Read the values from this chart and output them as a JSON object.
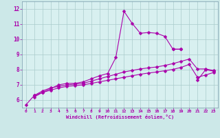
{
  "background_color": "#cce8e8",
  "plot_bg_color": "#d8f0f0",
  "line_color": "#aa00aa",
  "grid_color": "#aacccc",
  "xlabel": "Windchill (Refroidissement éolien,°C)",
  "xlim": [
    -0.5,
    23.5
  ],
  "ylim": [
    5.5,
    12.5
  ],
  "yticks": [
    6,
    7,
    8,
    9,
    10,
    11,
    12
  ],
  "xticks": [
    0,
    1,
    2,
    3,
    4,
    5,
    6,
    7,
    8,
    9,
    10,
    11,
    12,
    13,
    14,
    15,
    16,
    17,
    18,
    19,
    20,
    21,
    22,
    23
  ],
  "line1_x": [
    0,
    1,
    2,
    3,
    4,
    5,
    6,
    7,
    8,
    9,
    10,
    11,
    12,
    13,
    14,
    15,
    16,
    17,
    18,
    19
  ],
  "line1_y": [
    5.7,
    6.3,
    6.5,
    6.75,
    7.0,
    7.1,
    7.1,
    7.2,
    7.4,
    7.6,
    7.75,
    8.8,
    11.85,
    11.05,
    10.4,
    10.45,
    10.4,
    10.2,
    9.35,
    9.35
  ],
  "line2_x": [
    18,
    19,
    20,
    21,
    22,
    23
  ],
  "line2_y": [
    9.35,
    9.35,
    null,
    7.3,
    8.0,
    7.9
  ],
  "line3_x": [
    1,
    2,
    3,
    4,
    5,
    6,
    7,
    8,
    9,
    10,
    11,
    12,
    13,
    14,
    15,
    16,
    17,
    18,
    19,
    20,
    21,
    22,
    23
  ],
  "line3_y": [
    6.3,
    6.6,
    6.8,
    6.9,
    7.0,
    7.05,
    7.1,
    7.25,
    7.4,
    7.55,
    7.7,
    7.85,
    7.95,
    8.05,
    8.12,
    8.18,
    8.28,
    8.4,
    8.55,
    8.7,
    8.05,
    8.05,
    7.95
  ],
  "line4_x": [
    1,
    2,
    3,
    4,
    5,
    6,
    7,
    8,
    9,
    10,
    11,
    12,
    13,
    14,
    15,
    16,
    17,
    18,
    19,
    20,
    21,
    22,
    23
  ],
  "line4_y": [
    6.2,
    6.5,
    6.65,
    6.8,
    6.9,
    6.95,
    7.0,
    7.1,
    7.2,
    7.3,
    7.4,
    7.5,
    7.6,
    7.7,
    7.78,
    7.85,
    7.93,
    8.02,
    8.15,
    8.35,
    7.5,
    7.65,
    7.82
  ]
}
